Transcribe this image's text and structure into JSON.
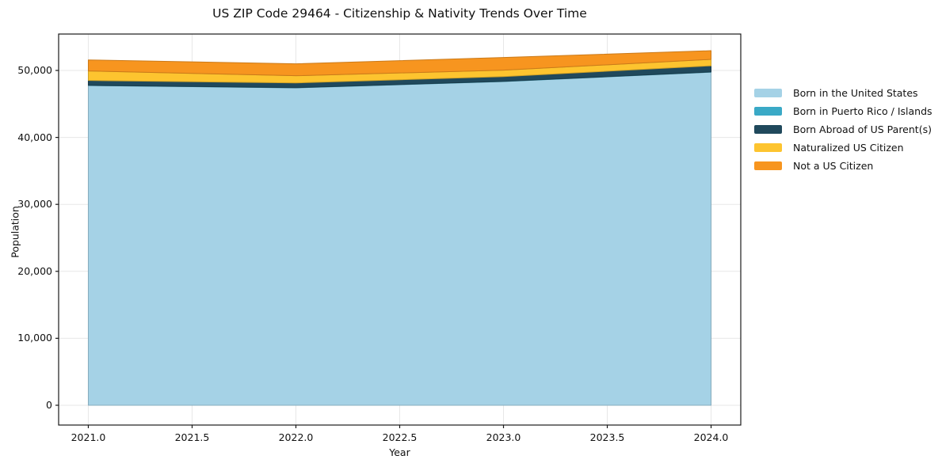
{
  "chart_data": {
    "type": "area",
    "stacked": true,
    "title": "US ZIP Code 29464 - Citizenship & Nativity Trends Over Time",
    "xlabel": "Year",
    "ylabel": "Population",
    "x": [
      2021,
      2022,
      2023,
      2024
    ],
    "series": [
      {
        "name": "Born in the United States",
        "color": "#A5D2E6",
        "values": [
          47750,
          47400,
          48350,
          49750
        ]
      },
      {
        "name": "Born in Puerto Rico / Islands",
        "color": "#3AA9C6",
        "values": [
          30,
          30,
          30,
          30
        ]
      },
      {
        "name": "Born Abroad of US Parent(s)",
        "color": "#20495C",
        "values": [
          720,
          710,
          710,
          920
        ]
      },
      {
        "name": "Naturalized US Citizen",
        "color": "#FDC42F",
        "values": [
          1420,
          1070,
          950,
          950
        ]
      },
      {
        "name": "Not a US Citizen",
        "color": "#F7951F",
        "values": [
          1650,
          1780,
          1890,
          1300
        ]
      }
    ],
    "stack_totals": [
      51570,
      50990,
      51930,
      52950
    ],
    "xticks": {
      "values": [
        2021.0,
        2021.5,
        2022.0,
        2022.5,
        2023.0,
        2023.5,
        2024.0
      ],
      "labels": [
        "2021.0",
        "2021.5",
        "2022.0",
        "2022.5",
        "2023.0",
        "2023.5",
        "2024.0"
      ]
    },
    "yticks": {
      "values": [
        0,
        10000,
        20000,
        30000,
        40000,
        50000
      ],
      "labels": [
        "0",
        "10,000",
        "20,000",
        "30,000",
        "40,000",
        "50,000"
      ]
    },
    "xlim": [
      2020.857,
      2024.143
    ],
    "ylim": [
      -2956,
      55437
    ],
    "grid": true,
    "legend_position": "right-outside",
    "colors": {
      "background": "#ffffff",
      "grid": "#e7e7e7",
      "spine": "#1a1a1a",
      "text": "#111111"
    }
  }
}
